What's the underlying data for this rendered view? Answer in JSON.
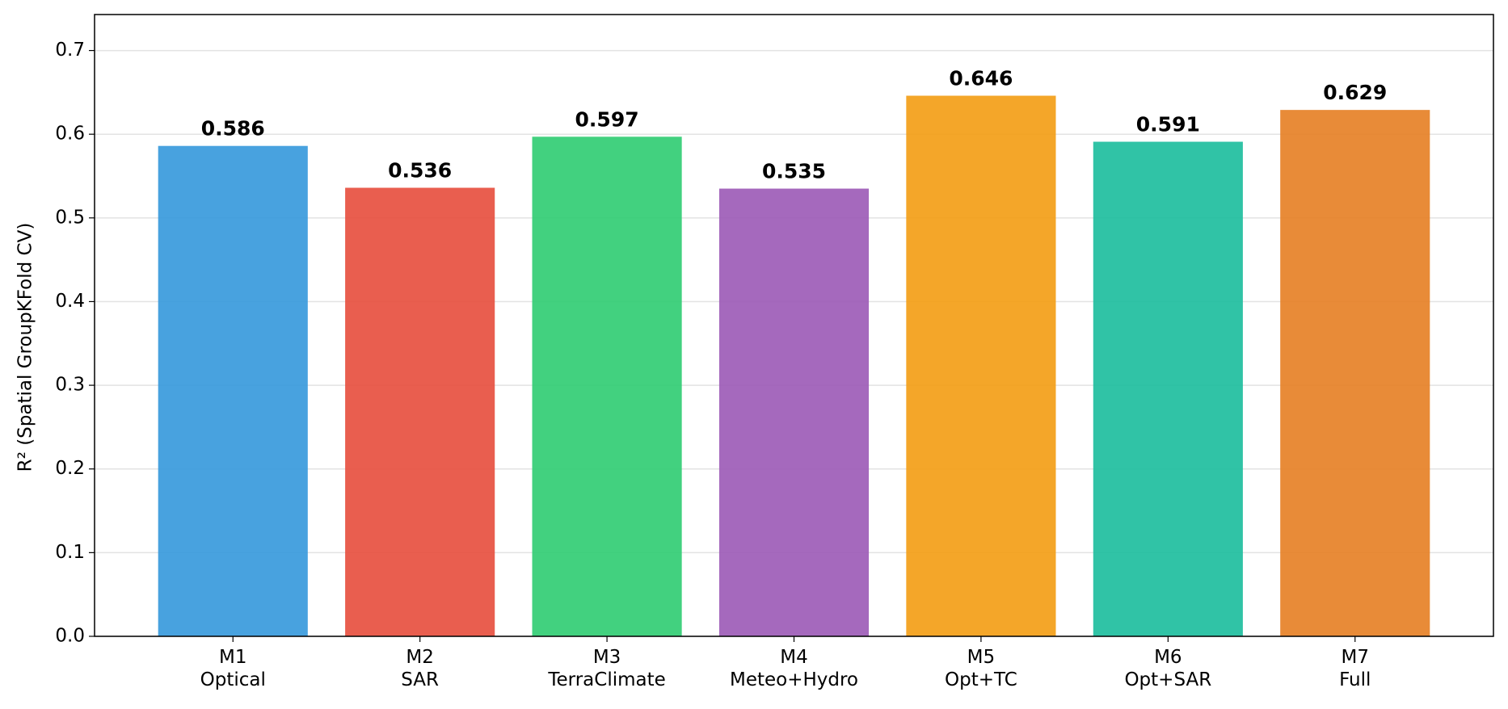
{
  "chart_data": {
    "type": "bar",
    "ylabel": "R² (Spatial GroupKFold CV)",
    "categories": [
      "M1\nOptical",
      "M2\nSAR",
      "M3\nTerraClimate",
      "M4\nMeteo+Hydro",
      "M5\nOpt+TC",
      "M6\nOpt+SAR",
      "M7\nFull"
    ],
    "values": [
      0.586,
      0.536,
      0.597,
      0.535,
      0.646,
      0.591,
      0.629
    ],
    "colors": [
      "#3498db",
      "#e74c3c",
      "#2ecc71",
      "#9b59b6",
      "#f39c12",
      "#1abc9c",
      "#e67e22"
    ],
    "ylim": [
      0,
      0.743
    ],
    "yticks": [
      {
        "value": 0,
        "label": "0.0"
      },
      0.1,
      0.2,
      0.3,
      0.4,
      0.5,
      0.6,
      0.7
    ],
    "grid": true
  }
}
